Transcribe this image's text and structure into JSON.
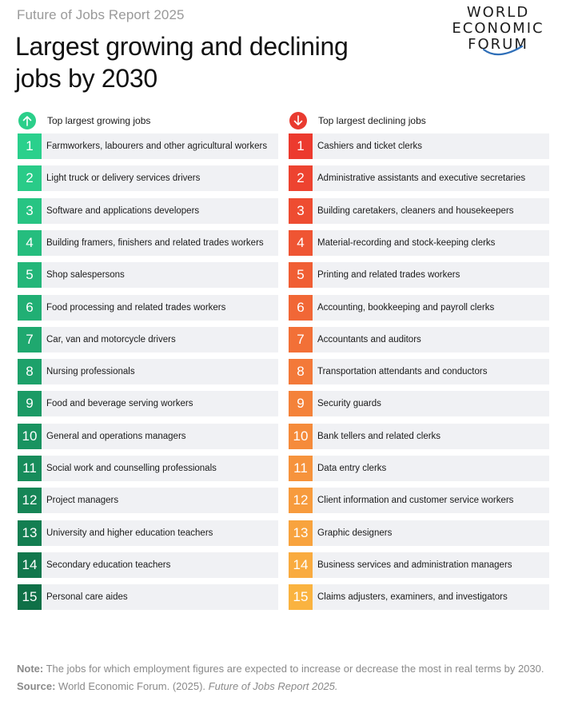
{
  "report_label": "Future of Jobs Report 2025",
  "headline_line1": "Largest growing and declining",
  "headline_line2": "jobs by 2030",
  "logo": {
    "line1": "WORLD",
    "line2": "ECONOMIC",
    "line3": "FORUM"
  },
  "growing": {
    "header": "Top largest growing jobs",
    "icon": "arrow-up-icon",
    "items": [
      {
        "rank": "1",
        "label": "Farmworkers, labourers and other agricultural workers",
        "color": "#2ad08c"
      },
      {
        "rank": "2",
        "label": "Light truck or delivery services drivers",
        "color": "#29cb88"
      },
      {
        "rank": "3",
        "label": "Software and applications developers",
        "color": "#27c483"
      },
      {
        "rank": "4",
        "label": "Building framers, finishers and related trades workers",
        "color": "#25bd7e"
      },
      {
        "rank": "5",
        "label": "Shop salespersons",
        "color": "#23b679"
      },
      {
        "rank": "6",
        "label": "Food processing and related trades workers",
        "color": "#21af74"
      },
      {
        "rank": "7",
        "label": "Car, van and motorcycle drivers",
        "color": "#1fa86f"
      },
      {
        "rank": "8",
        "label": "Nursing professionals",
        "color": "#1da16a"
      },
      {
        "rank": "9",
        "label": "Food and beverage serving workers",
        "color": "#1b9a65"
      },
      {
        "rank": "10",
        "label": "General and operations managers",
        "color": "#199360"
      },
      {
        "rank": "11",
        "label": "Social work and counselling professionals",
        "color": "#178c5b"
      },
      {
        "rank": "12",
        "label": "Project managers",
        "color": "#158556"
      },
      {
        "rank": "13",
        "label": "University and higher education teachers",
        "color": "#137e51"
      },
      {
        "rank": "14",
        "label": "Secondary education teachers",
        "color": "#11774c"
      },
      {
        "rank": "15",
        "label": "Personal care aides",
        "color": "#0f7047"
      }
    ]
  },
  "declining": {
    "header": "Top largest declining jobs",
    "icon": "arrow-down-icon",
    "items": [
      {
        "rank": "1",
        "label": "Cashiers and ticket clerks",
        "color": "#ec3a2e"
      },
      {
        "rank": "2",
        "label": "Administrative assistants and executive secretaries",
        "color": "#ed4330"
      },
      {
        "rank": "3",
        "label": "Building caretakers, cleaners and housekeepers",
        "color": "#ee4c31"
      },
      {
        "rank": "4",
        "label": "Material-recording and stock-keeping clerks",
        "color": "#ef5533"
      },
      {
        "rank": "5",
        "label": "Printing and related trades workers",
        "color": "#f05e34"
      },
      {
        "rank": "6",
        "label": "Accounting, bookkeeping and payroll clerks",
        "color": "#f16736"
      },
      {
        "rank": "7",
        "label": "Accountants and auditors",
        "color": "#f27037"
      },
      {
        "rank": "8",
        "label": "Transportation attendants and conductors",
        "color": "#f37939"
      },
      {
        "rank": "9",
        "label": "Security guards",
        "color": "#f4823a"
      },
      {
        "rank": "10",
        "label": "Bank tellers and related clerks",
        "color": "#f58b3b"
      },
      {
        "rank": "11",
        "label": "Data entry clerks",
        "color": "#f6933c"
      },
      {
        "rank": "12",
        "label": "Client information and customer service workers",
        "color": "#f79b3d"
      },
      {
        "rank": "13",
        "label": "Graphic designers",
        "color": "#f8a33e"
      },
      {
        "rank": "14",
        "label": "Business services and administration managers",
        "color": "#f9ab3f"
      },
      {
        "rank": "15",
        "label": "Claims adjusters, examiners, and investigators",
        "color": "#fab340"
      }
    ]
  },
  "note_label": "Note:",
  "note_text": "The jobs for which employment figures are expected to increase or decrease the most in real terms by 2030.",
  "source_label": "Source:",
  "source_text": "World Economic Forum. (2025).",
  "source_title": "Future of Jobs Report 2025."
}
